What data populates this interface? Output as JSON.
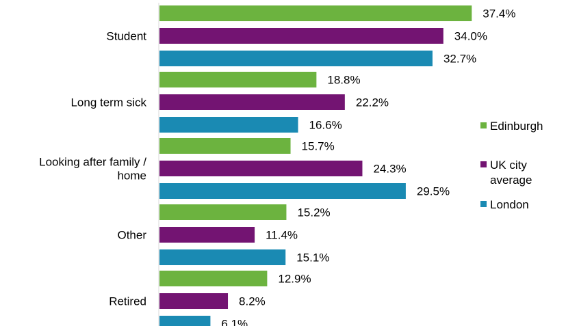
{
  "chart_data": {
    "type": "bar",
    "orientation": "horizontal",
    "title": "",
    "xlabel": "",
    "ylabel": "",
    "xlim": [
      0,
      40
    ],
    "grid": false,
    "legend_position": "right",
    "categories": [
      [
        "Student"
      ],
      [
        "Long term sick"
      ],
      [
        "Looking after family /",
        "home"
      ],
      [
        "Other"
      ],
      [
        "Retired"
      ]
    ],
    "series": [
      {
        "name": "Edinburgh",
        "legend_lines": [
          "Edinburgh"
        ],
        "color": "#6cb33f",
        "values": [
          37.4,
          18.8,
          15.7,
          15.2,
          12.9
        ],
        "labels": [
          "37.4%",
          "18.8%",
          "15.7%",
          "15.2%",
          "12.9%"
        ]
      },
      {
        "name": "UK city average",
        "legend_lines": [
          "UK city",
          "average"
        ],
        "color": "#731472",
        "values": [
          34.0,
          22.2,
          24.3,
          11.4,
          8.2
        ],
        "labels": [
          "34.0%",
          "22.2%",
          "24.3%",
          "11.4%",
          "8.2%"
        ]
      },
      {
        "name": "London",
        "legend_lines": [
          "London"
        ],
        "color": "#1a8ab3",
        "values": [
          32.7,
          16.6,
          29.5,
          15.1,
          6.1
        ],
        "labels": [
          "32.7%",
          "16.6%",
          "29.5%",
          "15.1%",
          "6.1%"
        ]
      }
    ]
  }
}
